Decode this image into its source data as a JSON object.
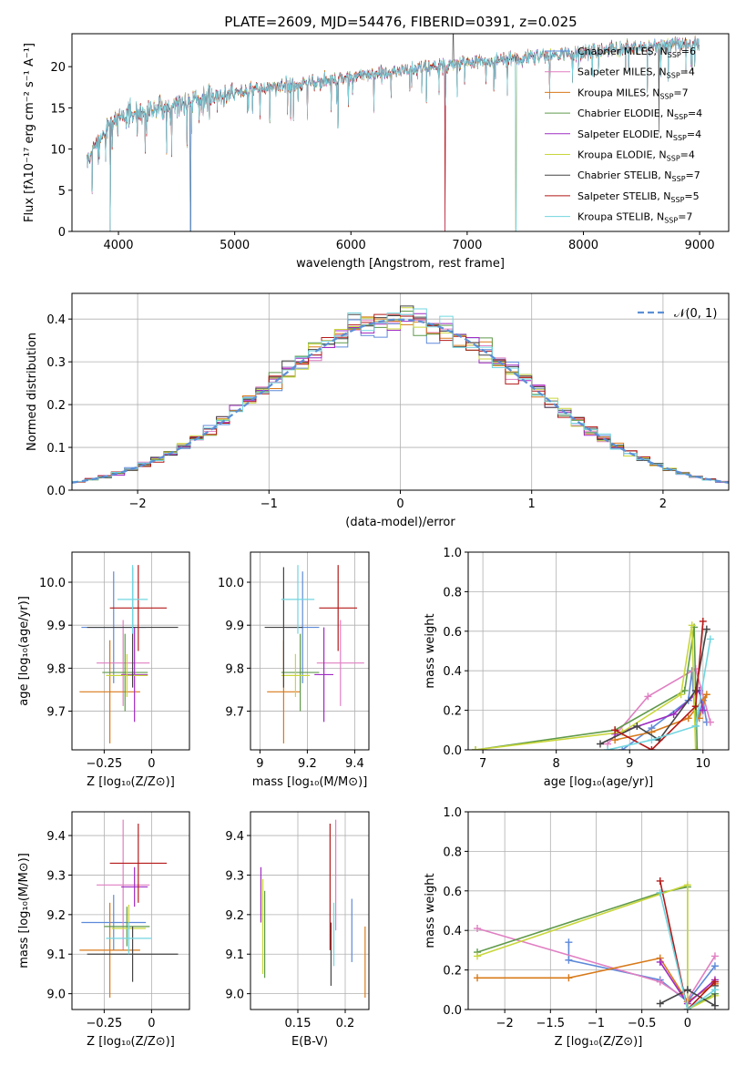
{
  "figure_title": "PLATE=2609, MJD=54476, FIBERID=0391, z=0.025",
  "models": [
    {
      "name": "Chabrier MILES",
      "nssp": 6,
      "color": "#5e8ad9"
    },
    {
      "name": "Salpeter MILES",
      "nssp": 4,
      "color": "#e07fc2"
    },
    {
      "name": "Kroupa MILES",
      "nssp": 7,
      "color": "#d87a1a"
    },
    {
      "name": "Chabrier ELODIE",
      "nssp": 4,
      "color": "#5f9a4a"
    },
    {
      "name": "Salpeter ELODIE",
      "nssp": 4,
      "color": "#a02bc2"
    },
    {
      "name": "Kroupa ELODIE",
      "nssp": 4,
      "color": "#c9d63a"
    },
    {
      "name": "Chabrier STELIB",
      "nssp": 7,
      "color": "#444444"
    },
    {
      "name": "Salpeter STELIB",
      "nssp": 5,
      "color": "#b51818"
    },
    {
      "name": "Kroupa STELIB",
      "nssp": 7,
      "color": "#72d6e0"
    }
  ],
  "nssp_label": "N",
  "nssp_sub": "SSP",
  "chart_data": [
    {
      "id": "spectrum",
      "type": "line",
      "xlabel": "wavelength [Angstrom, rest frame]",
      "ylabel": "Flux [fλ10⁻¹⁷ erg cm⁻² s⁻¹ A⁻¹]",
      "xlim": [
        3600,
        9250
      ],
      "ylim": [
        0,
        24
      ],
      "xticks": [
        4000,
        5000,
        6000,
        7000,
        8000,
        9000
      ],
      "yticks": [
        0,
        5,
        10,
        15,
        20
      ],
      "grid": false,
      "continuum": [
        [
          3730,
          8.5
        ],
        [
          3800,
          10.5
        ],
        [
          3900,
          12.5
        ],
        [
          4000,
          14.0
        ],
        [
          4200,
          14.5
        ],
        [
          4400,
          15.0
        ],
        [
          4600,
          15.8
        ],
        [
          4800,
          16.3
        ],
        [
          5000,
          16.8
        ],
        [
          5200,
          17.3
        ],
        [
          5500,
          17.8
        ],
        [
          5800,
          18.3
        ],
        [
          6000,
          18.7
        ],
        [
          6300,
          19.2
        ],
        [
          6600,
          19.8
        ],
        [
          7000,
          20.4
        ],
        [
          7400,
          20.9
        ],
        [
          7800,
          21.5
        ],
        [
          8200,
          22.0
        ],
        [
          8600,
          22.4
        ],
        [
          9000,
          22.8
        ]
      ],
      "dips": [
        [
          4620,
          0
        ],
        [
          6810,
          0
        ],
        [
          7420,
          0
        ],
        [
          3930,
          0
        ],
        [
          5890,
          12.5
        ]
      ]
    },
    {
      "id": "residuals",
      "type": "histogram",
      "xlabel": "(data-model)/error",
      "ylabel": "Normed distribution",
      "xlim": [
        -2.5,
        2.5
      ],
      "ylim": [
        0,
        0.46
      ],
      "xticks": [
        -2,
        -1,
        0,
        1,
        2
      ],
      "yticks": [
        0.0,
        0.1,
        0.2,
        0.3,
        0.4
      ],
      "grid": true,
      "bin_width": 0.1,
      "reference_label": "𝒩(0, 1)"
    },
    {
      "id": "age_vs_Z",
      "type": "errorbar",
      "xlabel": "Z [log₁₀(Z/Z⊙)]",
      "ylabel": "age  [log₁₀(age/yr)]",
      "xlim": [
        -0.42,
        0.2
      ],
      "ylim": [
        9.61,
        10.07
      ],
      "xticks": [
        -0.25,
        0.0
      ],
      "yticks": [
        9.7,
        9.8,
        9.9,
        10.0
      ],
      "grid": true,
      "points": [
        {
          "x": -0.2,
          "y": 9.895,
          "xerr": 0.17,
          "yerr": 0.13
        },
        {
          "x": -0.15,
          "y": 9.812,
          "xerr": 0.14,
          "yerr": 0.1
        },
        {
          "x": -0.22,
          "y": 9.745,
          "xerr": 0.16,
          "yerr": 0.12
        },
        {
          "x": -0.14,
          "y": 9.79,
          "xerr": 0.12,
          "yerr": 0.09
        },
        {
          "x": -0.09,
          "y": 9.785,
          "xerr": 0.07,
          "yerr": 0.11
        },
        {
          "x": -0.13,
          "y": 9.783,
          "xerr": 0.11,
          "yerr": 0.05
        },
        {
          "x": -0.1,
          "y": 9.895,
          "xerr": 0.24,
          "yerr": 0.14
        },
        {
          "x": -0.07,
          "y": 9.94,
          "xerr": 0.15,
          "yerr": 0.1
        },
        {
          "x": -0.1,
          "y": 9.96,
          "xerr": 0.08,
          "yerr": 0.08
        }
      ]
    },
    {
      "id": "age_vs_mass",
      "type": "errorbar",
      "xlabel": "mass [log₁₀(M/M⊙)]",
      "ylabel": "",
      "xlim": [
        8.96,
        9.46
      ],
      "ylim": [
        9.61,
        10.07
      ],
      "xticks": [
        9.0,
        9.2,
        9.4
      ],
      "yticks": [
        9.7,
        9.8,
        9.9,
        10.0
      ],
      "grid": true,
      "points": [
        {
          "x": 9.18,
          "y": 9.895,
          "xerr": 0.07,
          "yerr": 0.13
        },
        {
          "x": 9.34,
          "y": 9.812,
          "xerr": 0.1,
          "yerr": 0.1
        },
        {
          "x": 9.1,
          "y": 9.745,
          "xerr": 0.07,
          "yerr": 0.12
        },
        {
          "x": 9.17,
          "y": 9.79,
          "xerr": 0.08,
          "yerr": 0.09
        },
        {
          "x": 9.27,
          "y": 9.785,
          "xerr": 0.04,
          "yerr": 0.11
        },
        {
          "x": 9.15,
          "y": 9.783,
          "xerr": 0.06,
          "yerr": 0.05
        },
        {
          "x": 9.1,
          "y": 9.895,
          "xerr": 0.08,
          "yerr": 0.14
        },
        {
          "x": 9.33,
          "y": 9.94,
          "xerr": 0.08,
          "yerr": 0.1
        },
        {
          "x": 9.16,
          "y": 9.96,
          "xerr": 0.07,
          "yerr": 0.08
        }
      ]
    },
    {
      "id": "weight_vs_age",
      "type": "line",
      "xlabel": "age  [log₁₀(age/yr)]",
      "ylabel": "mass weight",
      "xlim": [
        6.8,
        10.35
      ],
      "ylim": [
        0,
        1.0
      ],
      "xticks": [
        7,
        8,
        9,
        10
      ],
      "yticks": [
        0.0,
        0.2,
        0.4,
        0.6,
        0.8,
        1.0
      ],
      "grid": true,
      "series": [
        [
          [
            8.9,
            0.0
          ],
          [
            9.3,
            0.11
          ],
          [
            9.8,
            0.25
          ],
          [
            9.85,
            0.4
          ],
          [
            9.9,
            0.12
          ],
          [
            10.0,
            0.25
          ],
          [
            10.05,
            0.14
          ]
        ],
        [
          [
            8.7,
            0.03
          ],
          [
            9.25,
            0.27
          ],
          [
            9.9,
            0.41
          ],
          [
            10.1,
            0.14
          ]
        ],
        [
          [
            8.8,
            0.05
          ],
          [
            9.3,
            0.09
          ],
          [
            9.8,
            0.16
          ],
          [
            10.05,
            0.28
          ],
          [
            9.95,
            0.16
          ]
        ],
        [
          [
            6.9,
            0.0
          ],
          [
            8.8,
            0.1
          ],
          [
            9.75,
            0.3
          ],
          [
            9.88,
            0.62
          ],
          [
            9.92,
            0.0
          ]
        ],
        [
          [
            8.8,
            0.08
          ],
          [
            9.6,
            0.18
          ],
          [
            9.95,
            0.3
          ],
          [
            10.0,
            0.2
          ]
        ],
        [
          [
            6.9,
            0.0
          ],
          [
            8.9,
            0.09
          ],
          [
            9.7,
            0.28
          ],
          [
            9.85,
            0.63
          ],
          [
            9.9,
            0.0
          ]
        ],
        [
          [
            8.6,
            0.03
          ],
          [
            9.1,
            0.12
          ],
          [
            9.4,
            0.05
          ],
          [
            9.9,
            0.3
          ],
          [
            10.05,
            0.61
          ]
        ],
        [
          [
            8.8,
            0.1
          ],
          [
            9.3,
            0.0
          ],
          [
            9.9,
            0.22
          ],
          [
            10.0,
            0.65
          ]
        ],
        [
          [
            8.7,
            0.0
          ],
          [
            9.3,
            0.05
          ],
          [
            9.9,
            0.12
          ],
          [
            10.1,
            0.56
          ]
        ]
      ]
    },
    {
      "id": "mass_vs_Z",
      "type": "errorbar",
      "xlabel": "Z [log₁₀(Z/Z⊙)]",
      "ylabel": "mass [log₁₀(M/M⊙)]",
      "xlim": [
        -0.42,
        0.2
      ],
      "ylim": [
        8.96,
        9.46
      ],
      "xticks": [
        -0.25,
        0.0
      ],
      "yticks": [
        9.0,
        9.1,
        9.2,
        9.3,
        9.4
      ],
      "grid": true,
      "points": [
        {
          "x": -0.2,
          "y": 9.18,
          "xerr": 0.17,
          "yerr": 0.07
        },
        {
          "x": -0.15,
          "y": 9.275,
          "xerr": 0.14,
          "yerr": 0.165
        },
        {
          "x": -0.22,
          "y": 9.11,
          "xerr": 0.16,
          "yerr": 0.12
        },
        {
          "x": -0.13,
          "y": 9.17,
          "xerr": 0.12,
          "yerr": 0.05
        },
        {
          "x": -0.09,
          "y": 9.27,
          "xerr": 0.07,
          "yerr": 0.05
        },
        {
          "x": -0.12,
          "y": 9.165,
          "xerr": 0.09,
          "yerr": 0.06
        },
        {
          "x": -0.1,
          "y": 9.1,
          "xerr": 0.24,
          "yerr": 0.07
        },
        {
          "x": -0.07,
          "y": 9.33,
          "xerr": 0.15,
          "yerr": 0.1
        },
        {
          "x": -0.12,
          "y": 9.14,
          "xerr": 0.12,
          "yerr": 0.04
        }
      ]
    },
    {
      "id": "mass_vs_EBV",
      "type": "errorbar",
      "xlabel": "E(B-V)",
      "ylabel": "",
      "xlim": [
        0.1,
        0.225
      ],
      "ylim": [
        8.96,
        9.46
      ],
      "xticks": [
        0.15,
        0.2
      ],
      "yticks": [
        9.0,
        9.1,
        9.2,
        9.3,
        9.4
      ],
      "grid": true,
      "points": [
        {
          "x": 0.207,
          "y": 9.16,
          "xerr": 0,
          "yerr": 0.08
        },
        {
          "x": 0.19,
          "y": 9.3,
          "xerr": 0,
          "yerr": 0.14
        },
        {
          "x": 0.221,
          "y": 9.08,
          "xerr": 0,
          "yerr": 0.09
        },
        {
          "x": 0.115,
          "y": 9.15,
          "xerr": 0,
          "yerr": 0.11
        },
        {
          "x": 0.111,
          "y": 9.25,
          "xerr": 0,
          "yerr": 0.07
        },
        {
          "x": 0.113,
          "y": 9.17,
          "xerr": 0,
          "yerr": 0.12
        },
        {
          "x": 0.185,
          "y": 9.1,
          "xerr": 0,
          "yerr": 0.08
        },
        {
          "x": 0.184,
          "y": 9.27,
          "xerr": 0,
          "yerr": 0.16
        },
        {
          "x": 0.188,
          "y": 9.15,
          "xerr": 0,
          "yerr": 0.08
        }
      ]
    },
    {
      "id": "weight_vs_Z",
      "type": "line",
      "xlabel": "Z [log₁₀(Z/Z⊙)]",
      "ylabel": "mass weight",
      "xlim": [
        -2.4,
        0.45
      ],
      "ylim": [
        0,
        1.0
      ],
      "xticks": [
        -2.0,
        -1.5,
        -1.0,
        -0.5,
        0.0
      ],
      "yticks": [
        0.0,
        0.2,
        0.4,
        0.6,
        0.8,
        1.0
      ],
      "grid": true,
      "series": [
        [
          [
            -1.3,
            0.34
          ],
          [
            -1.3,
            0.25
          ],
          [
            -0.3,
            0.15
          ],
          [
            0.0,
            0.04
          ],
          [
            0.3,
            0.22
          ]
        ],
        [
          [
            -2.3,
            0.41
          ],
          [
            -0.3,
            0.14
          ],
          [
            0.0,
            0.05
          ],
          [
            0.3,
            0.27
          ]
        ],
        [
          [
            -2.3,
            0.16
          ],
          [
            -1.3,
            0.16
          ],
          [
            -0.3,
            0.26
          ],
          [
            0.0,
            0.04
          ],
          [
            0.3,
            0.13
          ]
        ],
        [
          [
            -2.3,
            0.29
          ],
          [
            -0.3,
            0.59
          ],
          [
            0.0,
            0.62
          ],
          [
            0.0,
            0.0
          ],
          [
            0.3,
            0.08
          ]
        ],
        [
          [
            -0.3,
            0.24
          ],
          [
            0.0,
            0.03
          ],
          [
            0.3,
            0.15
          ]
        ],
        [
          [
            -2.3,
            0.27
          ],
          [
            0.0,
            0.63
          ],
          [
            0.0,
            0.0
          ],
          [
            0.3,
            0.07
          ]
        ],
        [
          [
            -0.3,
            0.03
          ],
          [
            0.0,
            0.1
          ],
          [
            0.3,
            0.02
          ],
          [
            0.3,
            0.12
          ]
        ],
        [
          [
            -0.3,
            0.65
          ],
          [
            0.0,
            0.0
          ],
          [
            0.3,
            0.14
          ]
        ],
        [
          [
            -0.3,
            0.59
          ],
          [
            0.0,
            0.0
          ],
          [
            0.3,
            0.1
          ]
        ]
      ]
    }
  ]
}
